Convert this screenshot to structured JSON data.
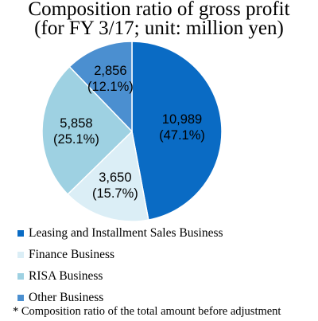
{
  "chart_data": {
    "type": "pie",
    "title_lines": [
      "Composition ratio of gross profit",
      "(for FY 3/17; unit: million yen)"
    ],
    "slices": [
      {
        "name": "Leasing and Installment Sales Business",
        "value": 10989,
        "value_label": "10,989",
        "percent_label": "(47.1%)",
        "color": "#0a6bc4"
      },
      {
        "name": "Finance Business",
        "value": 3650,
        "value_label": "3,650",
        "percent_label": "(15.7%)",
        "color": "#dbeef6"
      },
      {
        "name": "RISA Business",
        "value": 5858,
        "value_label": "5,858",
        "percent_label": "(25.1%)",
        "color": "#9ed1e2"
      },
      {
        "name": "Other Business",
        "value": 2856,
        "value_label": "2,856",
        "percent_label": "(12.1%)",
        "color": "#4b8fd0"
      }
    ],
    "legend_placement": "bottom",
    "footnote": "* Composition ratio of the total amount before adjustment"
  }
}
